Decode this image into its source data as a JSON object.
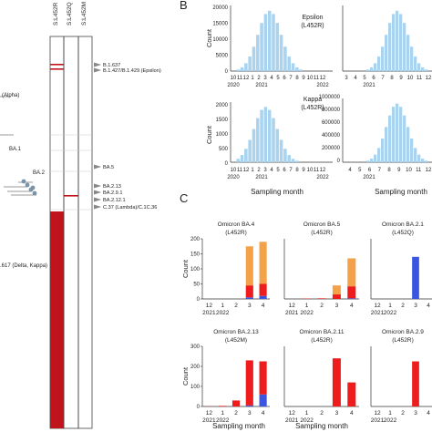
{
  "panel_labels": {
    "b": "B",
    "c": "C"
  },
  "panel_a": {
    "column_headers": [
      "S:L452R",
      "S:L452Q",
      "S:L452M"
    ],
    "tree_labels": [
      {
        "id": "alpha",
        "text": "(Alpha)"
      },
      {
        "id": "ba1",
        "text": "BA.1"
      },
      {
        "id": "ba2",
        "text": "BA.2"
      },
      {
        "id": "delta",
        "text": ".617 (Delta, Kappa)"
      }
    ],
    "arrow_labels": [
      {
        "id": "b1637",
        "text": "B.1.637"
      },
      {
        "id": "epsilon",
        "text": "B.1.427/B.1.429 (Epsilon)"
      },
      {
        "id": "ba5",
        "text": "BA.5"
      },
      {
        "id": "ba213",
        "text": "BA.2.13"
      },
      {
        "id": "ba291",
        "text": "BA.2.9.1"
      },
      {
        "id": "ba2121",
        "text": "BA.2.12.1"
      },
      {
        "id": "lambda",
        "text": "C.37 (Lambda)/C.1C.36"
      }
    ],
    "colors": {
      "presence": "#c0141c",
      "border": "#444444"
    }
  },
  "panel_b": {
    "ylabel": "Count",
    "xlabel": "Sampling month",
    "color": "#a9d3ef",
    "plots": [
      {
        "id": "epsilon",
        "label": "Epsilon",
        "sublabel": "(L452R)",
        "yticks": [
          "0",
          "5000",
          "10000",
          "15000",
          "20000"
        ],
        "xticks": [
          "10",
          "11",
          "12",
          "1",
          "2",
          "3",
          "4",
          "5",
          "6",
          "7",
          "8",
          "9",
          "10",
          "11",
          "12"
        ],
        "years": [
          "2020",
          "2021",
          "2022"
        ]
      },
      {
        "id": "kappa",
        "label": "Kappa",
        "sublabel": "(L452R)",
        "yticks": [
          "0",
          "500",
          "1000",
          "1500",
          "2000"
        ],
        "xticks": [
          "10",
          "11",
          "12",
          "1",
          "2",
          "3",
          "4",
          "5",
          "6",
          "7",
          "8",
          "9",
          "10",
          "11",
          "12"
        ],
        "years": [
          "2020",
          "2021",
          "2022"
        ]
      },
      {
        "id": "right_top",
        "yticks": [],
        "xticks": [
          "3",
          "4",
          "5",
          "6",
          "7",
          "8",
          "9",
          "10",
          "11",
          "12"
        ],
        "years": [
          "2021"
        ]
      },
      {
        "id": "right_bottom",
        "yticks": [
          "1000000",
          "800000",
          "600000",
          "400000",
          "200000",
          "0"
        ],
        "xticks": [
          "4",
          "5",
          "6",
          "7",
          "8",
          "9",
          "10",
          "11",
          "12"
        ],
        "years": [
          "2021"
        ]
      }
    ]
  },
  "panel_c": {
    "ylabel": "Count",
    "xlabel": "Sampling month",
    "xticks": [
      "12",
      "1",
      "2",
      "3",
      "4"
    ],
    "years": [
      "2021",
      "2022"
    ],
    "colors": {
      "orange": "#f4a24a",
      "red": "#ee1c1c",
      "blue": "#3a55e0"
    }
  },
  "chart_data": [
    {
      "type": "bar",
      "title": "Omicron BA.4",
      "subtitle": "(L452R)",
      "categories": [
        "12",
        "1",
        "2",
        "3",
        "4"
      ],
      "ylim": [
        0,
        200
      ],
      "yticks": [
        "0",
        "50",
        "100",
        "150",
        "200"
      ],
      "series": [
        {
          "color": "#3a55e0",
          "values": [
            0,
            0,
            0,
            5,
            10
          ]
        },
        {
          "color": "#ee1c1c",
          "values": [
            0,
            0,
            0,
            40,
            40
          ]
        },
        {
          "color": "#f4a24a",
          "values": [
            0,
            0,
            0,
            130,
            140
          ]
        }
      ]
    },
    {
      "type": "bar",
      "title": "Omicron BA.5",
      "subtitle": "(L452R)",
      "categories": [
        "12",
        "1",
        "2",
        "3",
        "4"
      ],
      "ylim": [
        0,
        200
      ],
      "yticks": [],
      "series": [
        {
          "color": "#3a55e0",
          "values": [
            0,
            0,
            0,
            0,
            2
          ]
        },
        {
          "color": "#ee1c1c",
          "values": [
            0,
            1,
            2,
            15,
            40
          ]
        },
        {
          "color": "#f4a24a",
          "values": [
            0,
            0,
            0,
            30,
            93
          ]
        }
      ]
    },
    {
      "type": "bar",
      "title": "Omicron BA.2.1",
      "subtitle": "(L452Q)",
      "categories": [
        "12",
        "1",
        "2",
        "3",
        "4"
      ],
      "ylim": [
        0,
        200
      ],
      "yticks": [],
      "series": [
        {
          "color": "#3a55e0",
          "values": [
            0,
            0,
            0,
            140,
            0
          ]
        },
        {
          "color": "#ee1c1c",
          "values": [
            0,
            0,
            0,
            0,
            0
          ]
        },
        {
          "color": "#f4a24a",
          "values": [
            0,
            0,
            0,
            0,
            0
          ]
        }
      ]
    },
    {
      "type": "bar",
      "title": "Omicron BA.2.13",
      "subtitle": "(L452M)",
      "categories": [
        "12",
        "1",
        "2",
        "3",
        "4"
      ],
      "ylim": [
        0,
        300
      ],
      "yticks": [
        "0",
        "100",
        "200",
        "300"
      ],
      "series": [
        {
          "color": "#3a55e0",
          "values": [
            0,
            0,
            0,
            5,
            60
          ]
        },
        {
          "color": "#ee1c1c",
          "values": [
            1,
            3,
            30,
            225,
            165
          ]
        },
        {
          "color": "#f4a24a",
          "values": [
            0,
            0,
            0,
            0,
            0
          ]
        }
      ]
    },
    {
      "type": "bar",
      "title": "Omicron BA.2.11",
      "subtitle": "(L452R)",
      "categories": [
        "12",
        "1",
        "2",
        "3",
        "4"
      ],
      "ylim": [
        0,
        200
      ],
      "yticks": [],
      "series": [
        {
          "color": "#3a55e0",
          "values": [
            0,
            0,
            0,
            0,
            0
          ]
        },
        {
          "color": "#ee1c1c",
          "values": [
            0,
            0,
            0,
            160,
            80
          ]
        },
        {
          "color": "#f4a24a",
          "values": [
            0,
            0,
            0,
            0,
            0
          ]
        }
      ]
    },
    {
      "type": "bar",
      "title": "Omicron BA.2.9",
      "subtitle": "(L452R)",
      "categories": [
        "12",
        "1",
        "2",
        "3",
        "4"
      ],
      "ylim": [
        0,
        200
      ],
      "yticks": [],
      "series": [
        {
          "color": "#3a55e0",
          "values": [
            0,
            0,
            0,
            0,
            0
          ]
        },
        {
          "color": "#ee1c1c",
          "values": [
            0,
            0,
            0,
            150,
            0
          ]
        },
        {
          "color": "#f4a24a",
          "values": [
            0,
            0,
            0,
            0,
            0
          ]
        }
      ]
    }
  ]
}
